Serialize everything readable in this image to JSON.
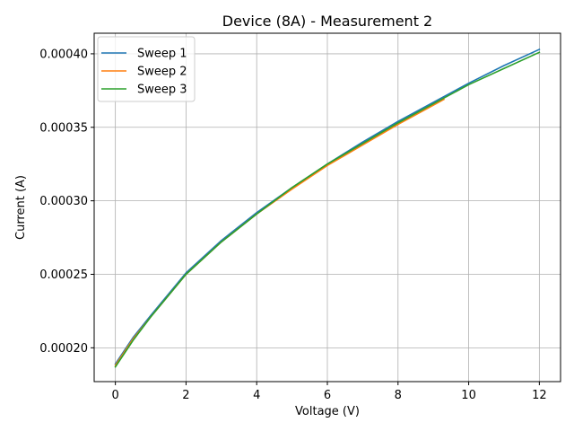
{
  "chart_data": {
    "type": "line",
    "title": "Device (8A) - Measurement 2",
    "xlabel": "Voltage (V)",
    "ylabel": "Current (A)",
    "xlim": [
      -0.6,
      12.6
    ],
    "ylim": [
      0.000177,
      0.000414
    ],
    "xticks": [
      0,
      2,
      4,
      6,
      8,
      10,
      12
    ],
    "xtick_labels": [
      "0",
      "2",
      "4",
      "6",
      "8",
      "10",
      "12"
    ],
    "yticks": [
      0.0002,
      0.00025,
      0.0003,
      0.00035,
      0.0004
    ],
    "ytick_labels": [
      "0.00020",
      "0.00025",
      "0.00030",
      "0.00035",
      "0.00040"
    ],
    "grid": true,
    "legend_position": "top-left",
    "series": [
      {
        "name": "Sweep 1",
        "color": "#1f77b4",
        "x": [
          0,
          0.5,
          1,
          2,
          3,
          4,
          5,
          6,
          7,
          8,
          9,
          10,
          11,
          12
        ],
        "y": [
          0.000189,
          0.000207,
          0.000222,
          0.000251,
          0.000273,
          0.000292,
          0.000309,
          0.000325,
          0.00034,
          0.000354,
          0.000367,
          0.00038,
          0.000392,
          0.000403
        ]
      },
      {
        "name": "Sweep 2",
        "color": "#ff7f0e",
        "x": [
          0,
          0.5,
          1,
          2,
          3,
          4,
          5,
          6,
          7,
          8,
          9,
          9.3
        ],
        "y": [
          0.000188,
          0.000206,
          0.000221,
          0.00025,
          0.000272,
          0.000291,
          0.000308,
          0.000324,
          0.000338,
          0.000352,
          0.000365,
          0.000369
        ]
      },
      {
        "name": "Sweep 3",
        "color": "#2ca02c",
        "x": [
          0,
          0.5,
          1,
          2,
          3,
          4,
          5,
          6,
          7,
          8,
          9,
          10,
          11,
          12
        ],
        "y": [
          0.000187,
          0.000205,
          0.000221,
          0.00025,
          0.000272,
          0.000291,
          0.000309,
          0.000325,
          0.000339,
          0.000353,
          0.000366,
          0.000379,
          0.00039,
          0.000401
        ]
      }
    ]
  }
}
